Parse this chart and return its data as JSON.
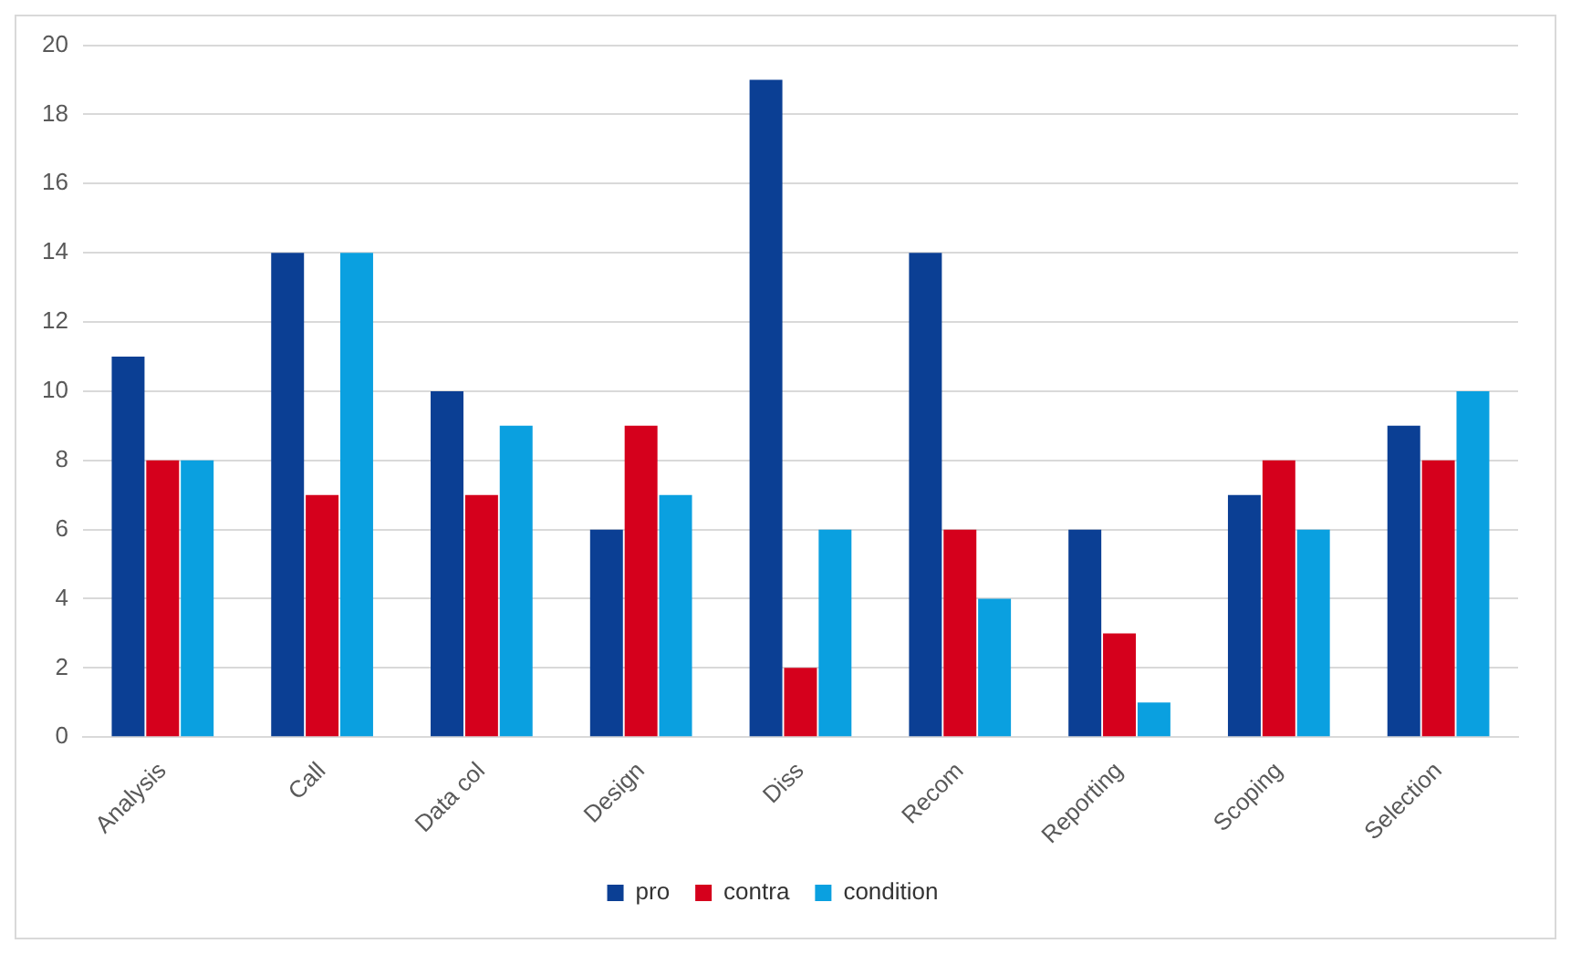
{
  "chart_data": {
    "type": "bar",
    "categories": [
      "Analysis",
      "Call",
      "Data col",
      "Design",
      "Diss",
      "Recom",
      "Reporting",
      "Scoping",
      "Selection"
    ],
    "series": [
      {
        "name": "pro",
        "color": "#0b3f94",
        "values": [
          11,
          14,
          10,
          6,
          19,
          14,
          6,
          7,
          9
        ]
      },
      {
        "name": "contra",
        "color": "#d5001c",
        "values": [
          8,
          7,
          7,
          9,
          2,
          6,
          3,
          8,
          8
        ]
      },
      {
        "name": "condition",
        "color": "#0aa0e0",
        "values": [
          8,
          14,
          9,
          7,
          6,
          4,
          1,
          6,
          10
        ]
      }
    ],
    "ylim": [
      0,
      20
    ],
    "yticks": [
      0,
      2,
      4,
      6,
      8,
      10,
      12,
      14,
      16,
      18,
      20
    ],
    "grid": "y",
    "legend": "bottom"
  }
}
